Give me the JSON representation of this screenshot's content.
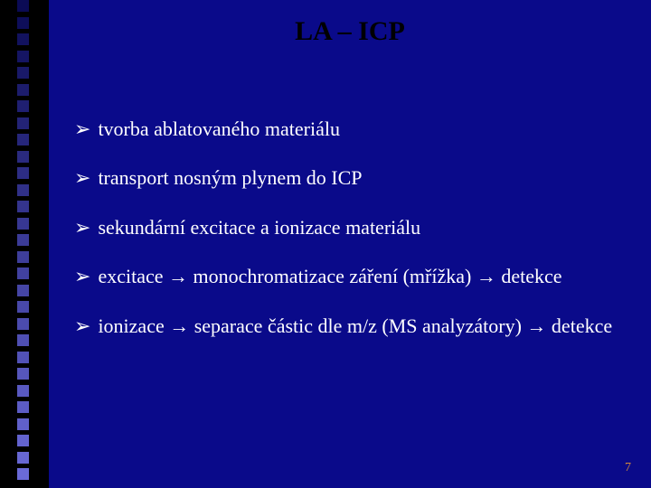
{
  "slide": {
    "title": "LA – ICP",
    "title_color": "#000000",
    "title_fontsize": 30,
    "bg_main_color": "#0a0a8a",
    "bg_left_color": "#000000",
    "body_text_color": "#ffffff",
    "body_fontsize": 22,
    "bullet_glyph": "➢",
    "arrow_glyph": "→",
    "bullets": [
      {
        "text": "tvorba ablatovaného materiálu"
      },
      {
        "text": "transport nosným plynem do ICP"
      },
      {
        "text": "sekundární excitace a ionizace materiálu"
      },
      {
        "text": "excitace → monochromatizace záření (mřížka) → detekce"
      },
      {
        "text": "ionizace → separace částic dle m/z (MS analyzátory) → detekce"
      }
    ],
    "page_number": "7",
    "page_number_color": "#d38a3a",
    "page_number_fontsize": 14,
    "side_squares": {
      "count": 29,
      "color_top": "#0b0b55",
      "color_bottom": "#6a6ad8"
    }
  }
}
